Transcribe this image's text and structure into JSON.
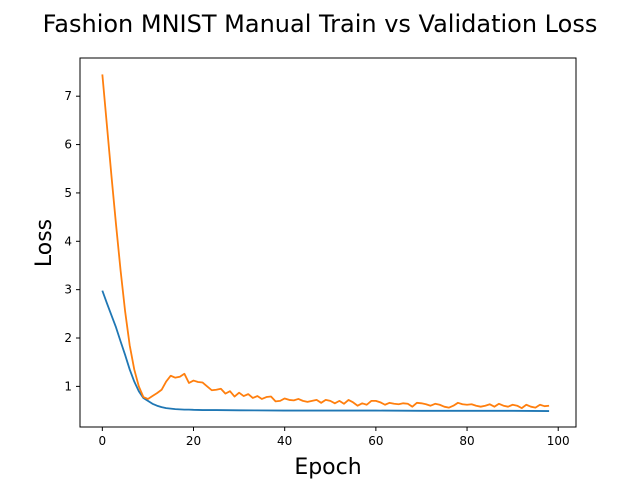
{
  "chart_data": {
    "type": "line",
    "title": "Fashion MNIST Manual Train vs Validation Loss",
    "xlabel": "Epoch",
    "ylabel": "Loss",
    "xlim": [
      -4.9,
      103.9
    ],
    "ylim": [
      0.16,
      7.79
    ],
    "xticks": [
      0,
      20,
      40,
      60,
      80,
      100
    ],
    "yticks": [
      1,
      2,
      3,
      4,
      5,
      6,
      7
    ],
    "grid": false,
    "legend": "none",
    "series": [
      {
        "color": "#1f77b4",
        "points": [
          [
            0,
            2.98
          ],
          [
            1,
            2.72
          ],
          [
            2,
            2.47
          ],
          [
            3,
            2.22
          ],
          [
            4,
            1.93
          ],
          [
            5,
            1.65
          ],
          [
            6,
            1.35
          ],
          [
            7,
            1.1
          ],
          [
            8,
            0.9
          ],
          [
            9,
            0.76
          ],
          [
            10,
            0.7
          ],
          [
            11,
            0.64
          ],
          [
            12,
            0.6
          ],
          [
            13,
            0.57
          ],
          [
            14,
            0.55
          ],
          [
            15,
            0.54
          ],
          [
            16,
            0.53
          ],
          [
            17,
            0.525
          ],
          [
            18,
            0.52
          ],
          [
            19,
            0.52
          ],
          [
            20,
            0.515
          ],
          [
            22,
            0.51
          ],
          [
            25,
            0.51
          ],
          [
            30,
            0.505
          ],
          [
            40,
            0.5
          ],
          [
            50,
            0.5
          ],
          [
            60,
            0.5
          ],
          [
            70,
            0.495
          ],
          [
            80,
            0.495
          ],
          [
            90,
            0.495
          ],
          [
            98,
            0.49
          ]
        ]
      },
      {
        "color": "#ff7f0e",
        "points": [
          [
            0,
            7.45
          ],
          [
            1,
            6.4
          ],
          [
            2,
            5.35
          ],
          [
            3,
            4.35
          ],
          [
            4,
            3.4
          ],
          [
            5,
            2.55
          ],
          [
            6,
            1.85
          ],
          [
            7,
            1.35
          ],
          [
            8,
            1.0
          ],
          [
            9,
            0.78
          ],
          [
            10,
            0.74
          ],
          [
            11,
            0.8
          ],
          [
            12,
            0.86
          ],
          [
            13,
            0.93
          ],
          [
            14,
            1.1
          ],
          [
            15,
            1.22
          ],
          [
            16,
            1.18
          ],
          [
            17,
            1.2
          ],
          [
            18,
            1.26
          ],
          [
            19,
            1.07
          ],
          [
            20,
            1.12
          ],
          [
            21,
            1.09
          ],
          [
            22,
            1.08
          ],
          [
            23,
            1.0
          ],
          [
            24,
            0.92
          ],
          [
            25,
            0.93
          ],
          [
            26,
            0.95
          ],
          [
            27,
            0.85
          ],
          [
            28,
            0.9
          ],
          [
            29,
            0.79
          ],
          [
            30,
            0.87
          ],
          [
            31,
            0.8
          ],
          [
            32,
            0.84
          ],
          [
            33,
            0.76
          ],
          [
            34,
            0.8
          ],
          [
            35,
            0.74
          ],
          [
            36,
            0.78
          ],
          [
            37,
            0.79
          ],
          [
            38,
            0.69
          ],
          [
            39,
            0.7
          ],
          [
            40,
            0.75
          ],
          [
            41,
            0.72
          ],
          [
            42,
            0.71
          ],
          [
            43,
            0.74
          ],
          [
            44,
            0.7
          ],
          [
            45,
            0.68
          ],
          [
            46,
            0.7
          ],
          [
            47,
            0.72
          ],
          [
            48,
            0.66
          ],
          [
            49,
            0.72
          ],
          [
            50,
            0.7
          ],
          [
            51,
            0.65
          ],
          [
            52,
            0.7
          ],
          [
            53,
            0.64
          ],
          [
            54,
            0.72
          ],
          [
            55,
            0.67
          ],
          [
            56,
            0.6
          ],
          [
            57,
            0.65
          ],
          [
            58,
            0.62
          ],
          [
            59,
            0.7
          ],
          [
            60,
            0.7
          ],
          [
            61,
            0.67
          ],
          [
            62,
            0.62
          ],
          [
            63,
            0.66
          ],
          [
            64,
            0.64
          ],
          [
            65,
            0.63
          ],
          [
            66,
            0.65
          ],
          [
            67,
            0.64
          ],
          [
            68,
            0.58
          ],
          [
            69,
            0.66
          ],
          [
            70,
            0.65
          ],
          [
            71,
            0.63
          ],
          [
            72,
            0.6
          ],
          [
            73,
            0.64
          ],
          [
            74,
            0.62
          ],
          [
            75,
            0.58
          ],
          [
            76,
            0.56
          ],
          [
            77,
            0.6
          ],
          [
            78,
            0.66
          ],
          [
            79,
            0.63
          ],
          [
            80,
            0.62
          ],
          [
            81,
            0.63
          ],
          [
            82,
            0.6
          ],
          [
            83,
            0.58
          ],
          [
            84,
            0.6
          ],
          [
            85,
            0.63
          ],
          [
            86,
            0.58
          ],
          [
            87,
            0.64
          ],
          [
            88,
            0.6
          ],
          [
            89,
            0.58
          ],
          [
            90,
            0.62
          ],
          [
            91,
            0.6
          ],
          [
            92,
            0.55
          ],
          [
            93,
            0.62
          ],
          [
            94,
            0.58
          ],
          [
            95,
            0.56
          ],
          [
            96,
            0.62
          ],
          [
            97,
            0.59
          ],
          [
            98,
            0.6
          ]
        ]
      }
    ]
  }
}
